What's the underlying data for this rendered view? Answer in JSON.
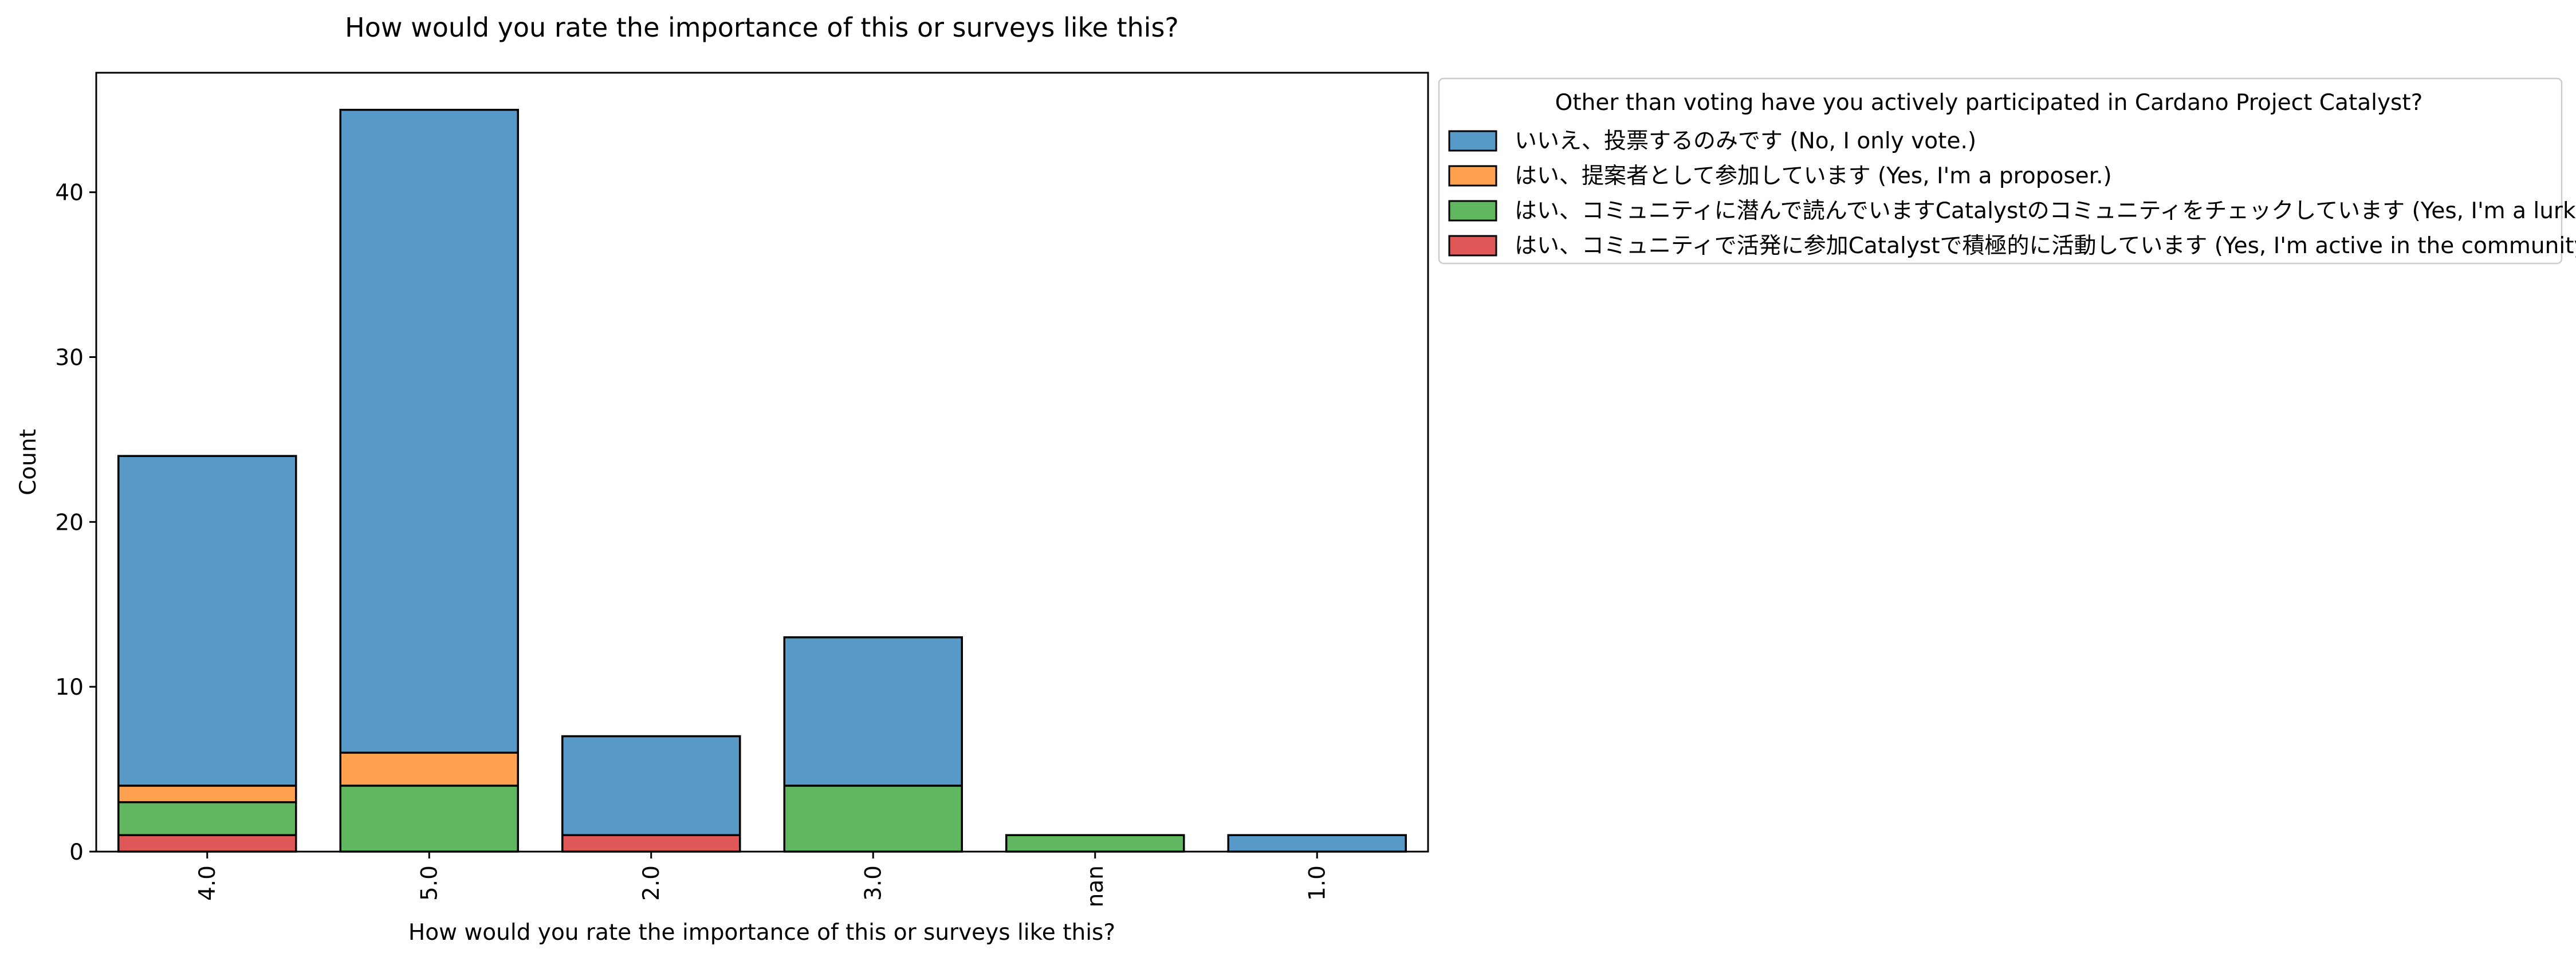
{
  "chart_data": {
    "type": "bar",
    "stacked": true,
    "title": "How would you rate the importance of this or surveys like this?",
    "xlabel": "How would you rate the importance of this or surveys like this?",
    "ylabel": "Count",
    "categories": [
      "4.0",
      "5.0",
      "2.0",
      "3.0",
      "nan",
      "1.0"
    ],
    "ylim": [
      0,
      47.25
    ],
    "yticks": [
      0,
      10,
      20,
      30,
      40
    ],
    "grid": false,
    "legend": {
      "title": "Other than voting have you actively participated in Cardano Project Catalyst?",
      "placement": "outside right, top"
    },
    "series": [
      {
        "name": "いいえ、投票するのみです (No, I only vote.)",
        "color": "#5799c7",
        "values": [
          20,
          39,
          6,
          9,
          0,
          1
        ]
      },
      {
        "name": "はい、提案者として参加しています (Yes, I'm a proposer.)",
        "color": "#ffa14f",
        "values": [
          1,
          2,
          0,
          0,
          0,
          0
        ]
      },
      {
        "name": "はい、コミュニティに潜んで読んでいますCatalystのコミュニティをチェックしています (Yes, I'm a lurker in the community)",
        "color": "#61b75f",
        "values": [
          2,
          4,
          0,
          4,
          1,
          0
        ]
      },
      {
        "name": "はい、コミュニティで活発に参加Catalystで積極的に活動しています (Yes, I'm active in the community.)",
        "color": "#e05758",
        "values": [
          1,
          0,
          1,
          0,
          0,
          0
        ]
      }
    ]
  }
}
